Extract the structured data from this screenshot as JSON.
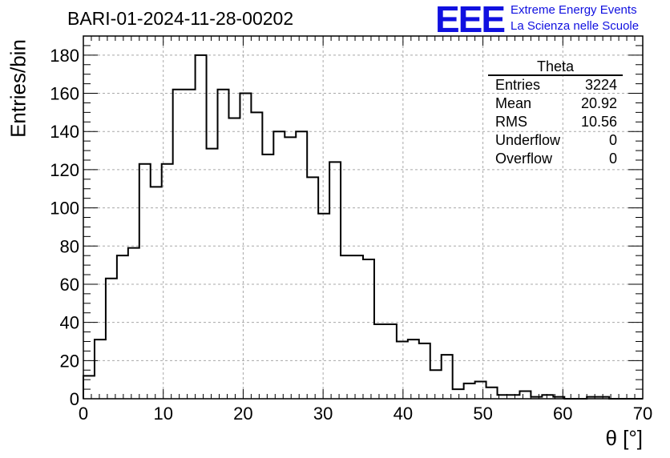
{
  "header": {
    "title": "BARI-01-2024-11-28-00202",
    "logo_text": "EEE",
    "logo_line1": "Extreme Energy Events",
    "logo_line2": "La Scienza nelle Scuole",
    "logo_color": "#1010e0"
  },
  "stats_box": {
    "title": "Theta",
    "rows": [
      {
        "label": "Entries",
        "value": "3224"
      },
      {
        "label": "Mean",
        "value": "20.92"
      },
      {
        "label": "RMS",
        "value": "10.56"
      },
      {
        "label": "Underflow",
        "value": "0"
      },
      {
        "label": "Overflow",
        "value": "0"
      }
    ]
  },
  "chart_data": {
    "type": "histogram",
    "xlabel": "θ [°]",
    "ylabel": "Entries/bin",
    "xlim": [
      0,
      70
    ],
    "ylim": [
      0,
      190
    ],
    "grid": true,
    "xticks": [
      0,
      10,
      20,
      30,
      40,
      50,
      60,
      70
    ],
    "yticks": [
      0,
      20,
      40,
      60,
      80,
      100,
      120,
      140,
      160,
      180
    ],
    "bin_width": 1.4,
    "bin_start": 0,
    "values": [
      12,
      31,
      63,
      75,
      79,
      123,
      111,
      123,
      162,
      162,
      180,
      131,
      162,
      147,
      160,
      150,
      128,
      140,
      137,
      140,
      116,
      97,
      124,
      75,
      75,
      73,
      39,
      39,
      30,
      31,
      29,
      15,
      23,
      5,
      8,
      9,
      6,
      2,
      2,
      4,
      1,
      2,
      1,
      0,
      0,
      1,
      1,
      0,
      0,
      0
    ]
  }
}
